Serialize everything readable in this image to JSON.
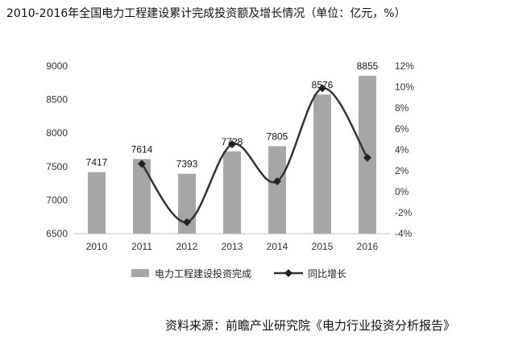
{
  "page": {
    "title": "2010-2016年全国电力工程建设累计完成投资额及增长情况（单位：亿元，%）",
    "source": "资料来源：前瞻产业研究院《电力行业投资分析报告》"
  },
  "chart_data": {
    "type": "bar",
    "title": "2010-2016年全国电力工程建设累计完成投资额及增长情况（单位：亿元，%）",
    "categories": [
      "2010",
      "2011",
      "2012",
      "2013",
      "2014",
      "2015",
      "2016"
    ],
    "series": [
      {
        "name": "电力工程建设投资完成",
        "type": "bar",
        "axis": "left",
        "values": [
          7417,
          7614,
          7393,
          7728,
          7805,
          8576,
          8855
        ],
        "data_labels": [
          "7417",
          "7614",
          "7393",
          "7728",
          "7805",
          "8576",
          "8855"
        ],
        "color": "#a6a6a6"
      },
      {
        "name": "同比增长",
        "type": "line",
        "axis": "right",
        "values": [
          null,
          2.66,
          -2.9,
          4.53,
          1.0,
          9.88,
          3.25
        ],
        "color": "#333333"
      }
    ],
    "y_left": {
      "ylim": [
        6500,
        9000
      ],
      "ticks": [
        6500,
        7000,
        7500,
        8000,
        8500,
        9000
      ],
      "tick_labels": [
        "6500",
        "7000",
        "7500",
        "8000",
        "8500",
        "9000"
      ]
    },
    "y_right": {
      "ylim": [
        -4,
        12
      ],
      "ticks": [
        -4,
        -2,
        0,
        2,
        4,
        6,
        8,
        10,
        12
      ],
      "tick_labels": [
        "-4%",
        "-2%",
        "0%",
        "2%",
        "4%",
        "6%",
        "8%",
        "10%",
        "12%"
      ]
    },
    "grid": false,
    "legend": {
      "position": "bottom",
      "entries": [
        "电力工程建设投资完成",
        "同比增长"
      ]
    }
  }
}
